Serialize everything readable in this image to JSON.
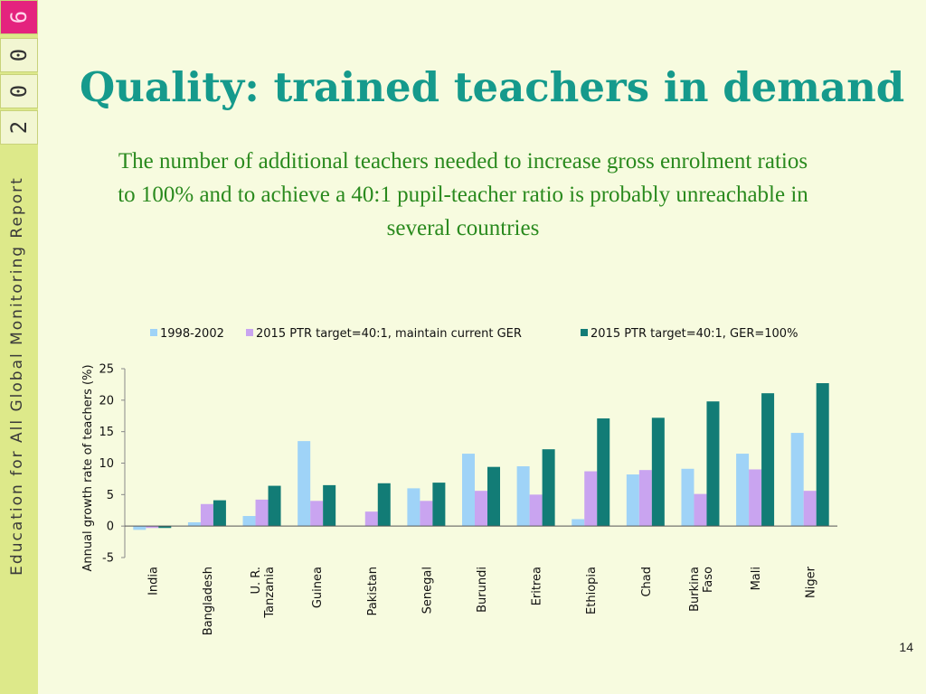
{
  "sidebar": {
    "year_digits": [
      "6",
      "0",
      "0",
      "2"
    ],
    "report_name": "Education for All Global Monitoring Report"
  },
  "slide": {
    "title": "Quality: trained teachers in demand",
    "subtitle": "The number of additional teachers needed to increase gross enrolment ratios to 100% and to achieve a 40:1 pupil-teacher ratio is probably unreachable in several countries",
    "page_number": "14"
  },
  "chart_data": {
    "type": "bar",
    "ylabel": "Annual growth rate of teachers (%)",
    "ylim": [
      -5,
      25
    ],
    "yticks": [
      25,
      20,
      15,
      10,
      5,
      0,
      -5
    ],
    "legend_position": "top",
    "categories": [
      [
        "India"
      ],
      [
        "Bangladesh"
      ],
      [
        "U. R.",
        "Tanzania"
      ],
      [
        "Guinea"
      ],
      [
        "Pakistan"
      ],
      [
        "Senegal"
      ],
      [
        "Burundi"
      ],
      [
        "Eritrea"
      ],
      [
        "Ethiopia"
      ],
      [
        "Chad"
      ],
      [
        "Burkina",
        "Faso"
      ],
      [
        "Mali"
      ],
      [
        "Niger"
      ]
    ],
    "series": [
      {
        "name": "1998-2002",
        "color": "#9fd3f7",
        "values": [
          -0.6,
          0.6,
          1.6,
          13.5,
          null,
          6.0,
          11.5,
          9.5,
          1.1,
          8.2,
          9.1,
          11.5,
          14.8
        ]
      },
      {
        "name": "2015 PTR target=40:1, maintain current GER",
        "color": "#c9a4f0",
        "values": [
          -0.3,
          3.5,
          4.2,
          4.0,
          2.3,
          4.0,
          5.6,
          5.0,
          8.7,
          8.9,
          5.1,
          9.0,
          5.6
        ]
      },
      {
        "name": "2015 PTR target=40:1, GER=100%",
        "color": "#127c76",
        "values": [
          -0.3,
          4.1,
          6.4,
          6.5,
          6.8,
          6.9,
          9.4,
          12.2,
          17.1,
          17.2,
          19.8,
          21.1,
          22.7
        ]
      }
    ]
  }
}
